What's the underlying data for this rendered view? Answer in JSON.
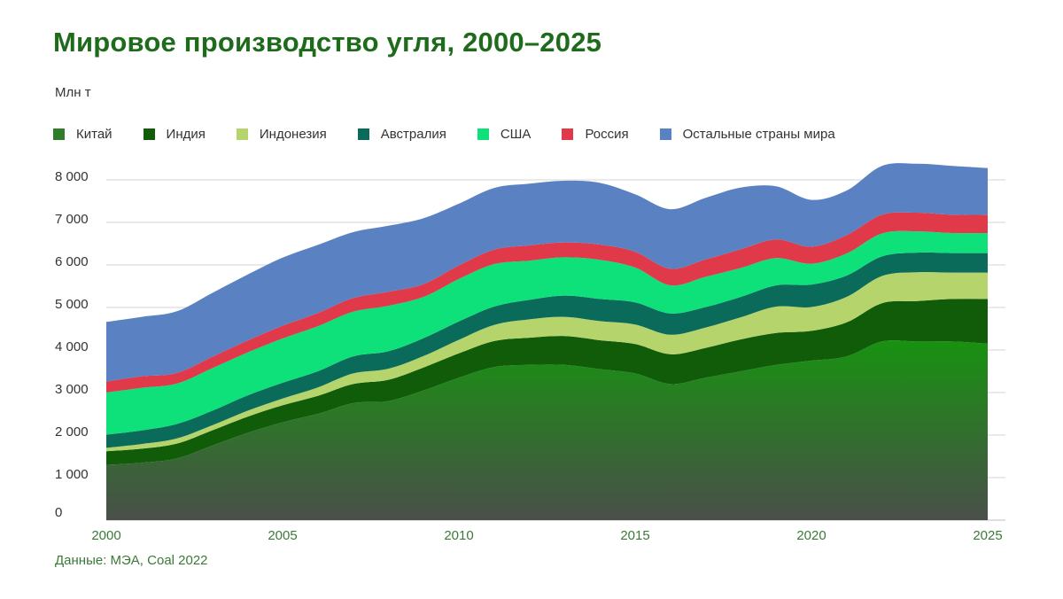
{
  "title": "Мировое производство угля, 2000–2025",
  "unit_label": "Млн т",
  "source": "Данные: МЭА, Coal 2022",
  "legend": [
    {
      "name": "Китай",
      "color": "#2f7d2a",
      "icon": "square"
    },
    {
      "name": "Индия",
      "color": "#115c08",
      "icon": "square"
    },
    {
      "name": "Индонезия",
      "color": "#b5d46c",
      "icon": "square"
    },
    {
      "name": "Австралия",
      "color": "#0b6b5a",
      "icon": "square"
    },
    {
      "name": "США",
      "color": "#0ee07a",
      "icon": "square"
    },
    {
      "name": "Россия",
      "color": "#e0394a",
      "icon": "square"
    },
    {
      "name": "Остальные страны мира",
      "color": "#5a82c2",
      "icon": "square"
    }
  ],
  "chart_data": {
    "type": "area",
    "stacked": true,
    "title": "Мировое производство угля, 2000–2025",
    "ylabel": "Млн т",
    "xlabel": "",
    "x": [
      2000,
      2001,
      2002,
      2003,
      2004,
      2005,
      2006,
      2007,
      2008,
      2009,
      2010,
      2011,
      2012,
      2013,
      2014,
      2015,
      2016,
      2017,
      2018,
      2019,
      2020,
      2021,
      2022,
      2023,
      2024,
      2025
    ],
    "ylim": [
      0,
      8000
    ],
    "y_ticks": [
      0,
      1000,
      2000,
      3000,
      4000,
      5000,
      6000,
      7000,
      8000
    ],
    "y_tick_labels": [
      "0",
      "1 000",
      "2 000",
      "3 000",
      "4 000",
      "5 000",
      "6 000",
      "7 000",
      "8 000"
    ],
    "x_ticks": [
      2000,
      2005,
      2010,
      2015,
      2020,
      2025
    ],
    "x_tick_labels": [
      "2000",
      "2005",
      "2010",
      "2015",
      "2020",
      "2025"
    ],
    "grid": "horizontal",
    "legend_position": "top",
    "series": [
      {
        "name": "Китай",
        "values": [
          1300,
          1350,
          1450,
          1750,
          2050,
          2300,
          2500,
          2750,
          2800,
          3050,
          3350,
          3600,
          3650,
          3650,
          3550,
          3450,
          3200,
          3350,
          3500,
          3650,
          3750,
          3850,
          4200,
          4200,
          4200,
          4150
        ]
      },
      {
        "name": "Индия",
        "values": [
          320,
          330,
          350,
          360,
          380,
          400,
          420,
          450,
          500,
          540,
          570,
          610,
          640,
          680,
          680,
          690,
          700,
          700,
          750,
          750,
          700,
          800,
          900,
          950,
          1000,
          1050
        ]
      },
      {
        "name": "Индонезия",
        "values": [
          80,
          110,
          120,
          120,
          140,
          160,
          200,
          250,
          260,
          270,
          320,
          380,
          430,
          450,
          450,
          460,
          460,
          480,
          520,
          620,
          560,
          600,
          640,
          680,
          620,
          620
        ]
      },
      {
        "name": "Австралия",
        "values": [
          310,
          320,
          340,
          340,
          360,
          370,
          380,
          400,
          410,
          420,
          430,
          430,
          460,
          500,
          520,
          520,
          500,
          480,
          480,
          500,
          530,
          500,
          460,
          460,
          460,
          460
        ]
      },
      {
        "name": "США",
        "values": [
          990,
          1000,
          950,
          1000,
          1010,
          1040,
          1060,
          1050,
          1070,
          970,
          1000,
          1000,
          920,
          900,
          920,
          820,
          660,
          710,
          680,
          640,
          490,
          520,
          540,
          500,
          470,
          470
        ]
      },
      {
        "name": "Россия",
        "values": [
          260,
          270,
          250,
          270,
          280,
          300,
          310,
          320,
          330,
          300,
          320,
          340,
          360,
          350,
          360,
          370,
          390,
          410,
          440,
          440,
          400,
          430,
          440,
          440,
          430,
          430
        ]
      },
      {
        "name": "Остальные страны мира",
        "values": [
          1400,
          1400,
          1450,
          1500,
          1550,
          1600,
          1600,
          1550,
          1550,
          1550,
          1450,
          1450,
          1450,
          1450,
          1450,
          1350,
          1400,
          1450,
          1450,
          1250,
          1100,
          1050,
          1150,
          1150,
          1150,
          1100
        ]
      }
    ]
  }
}
